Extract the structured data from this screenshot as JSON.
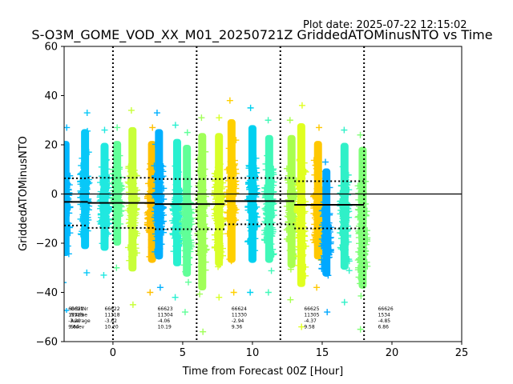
{
  "plot_date_label": "Plot date: 2025-07-22 12:15:02",
  "chart_data": {
    "type": "scatter",
    "title": "S-O3M_GOME_VOD_XX_M01_20250721Z GriddedATOMinusNTO vs Time",
    "xlabel": "Time from Forecast 00Z [Hour]",
    "ylabel": "GriddedATOMinusNTO",
    "xlim": [
      -3.5,
      25
    ],
    "ylim": [
      -60,
      60
    ],
    "xticks": [
      0,
      5,
      10,
      15,
      20,
      25
    ],
    "yticks": [
      -60,
      -40,
      -20,
      0,
      20,
      40,
      60
    ],
    "grid": false,
    "zero_line": 0,
    "vertical_dotted_lines_x": [
      0,
      6,
      12,
      18
    ],
    "clusters": [
      {
        "x": -3.4,
        "color": "#00b8ff",
        "ymin": -36,
        "ymax": 27
      },
      {
        "x": -2.0,
        "color": "#08c8f8",
        "ymin": -32,
        "ymax": 33
      },
      {
        "x": -0.6,
        "color": "#20e8e0",
        "ymin": -33,
        "ymax": 26
      },
      {
        "x": 0.3,
        "color": "#60ff98",
        "ymin": -30,
        "ymax": 27
      },
      {
        "x": 1.4,
        "color": "#c8ff38",
        "ymin": -45,
        "ymax": 34
      },
      {
        "x": 2.8,
        "color": "#ffc000",
        "ymin": -40,
        "ymax": 27
      },
      {
        "x": 3.3,
        "color": "#00b0ff",
        "ymin": -38,
        "ymax": 33
      },
      {
        "x": 4.6,
        "color": "#28f0d0",
        "ymin": -42,
        "ymax": 28
      },
      {
        "x": 5.3,
        "color": "#60ff98",
        "ymin": -48,
        "ymax": 25
      },
      {
        "x": 6.4,
        "color": "#a0ff58",
        "ymin": -56,
        "ymax": 31
      },
      {
        "x": 7.6,
        "color": "#d8ff28",
        "ymin": -42,
        "ymax": 31
      },
      {
        "x": 8.5,
        "color": "#ffd000",
        "ymin": -40,
        "ymax": 38
      },
      {
        "x": 10.0,
        "color": "#00d0f0",
        "ymin": -40,
        "ymax": 35
      },
      {
        "x": 11.2,
        "color": "#40f8b8",
        "ymin": -40,
        "ymax": 30
      },
      {
        "x": 12.8,
        "color": "#a8ff50",
        "ymin": -43,
        "ymax": 30
      },
      {
        "x": 13.5,
        "color": "#e0ff20",
        "ymin": -54,
        "ymax": 36
      },
      {
        "x": 14.7,
        "color": "#ffc800",
        "ymin": -38,
        "ymax": 27
      },
      {
        "x": 15.3,
        "color": "#00a8ff",
        "ymin": -48,
        "ymax": 13
      },
      {
        "x": 16.6,
        "color": "#30f0c8",
        "ymin": -44,
        "ymax": 26
      },
      {
        "x": 17.9,
        "color": "#80ff78",
        "ymin": -55,
        "ymax": 24
      }
    ],
    "mean_line": [
      {
        "x0": -3.5,
        "x1": -1.8,
        "y": -3.2
      },
      {
        "x0": -1.8,
        "x1": 3.0,
        "y": -3.6
      },
      {
        "x0": 3.0,
        "x1": 8.0,
        "y": -4.1
      },
      {
        "x0": 8.0,
        "x1": 13.0,
        "y": -2.9
      },
      {
        "x0": 13.0,
        "x1": 18.0,
        "y": -4.4
      }
    ],
    "upper_stdev_line": [
      {
        "x0": -3.5,
        "x1": -1.8,
        "y": 6.4
      },
      {
        "x0": -1.8,
        "x1": 3.0,
        "y": 6.6
      },
      {
        "x0": 3.0,
        "x1": 8.0,
        "y": 6.1
      },
      {
        "x0": 8.0,
        "x1": 13.0,
        "y": 6.5
      },
      {
        "x0": 13.0,
        "x1": 18.0,
        "y": 5.2
      }
    ],
    "lower_stdev_line": [
      {
        "x0": -3.5,
        "x1": -1.8,
        "y": -12.8
      },
      {
        "x0": -1.8,
        "x1": 3.0,
        "y": -13.8
      },
      {
        "x0": 3.0,
        "x1": 8.0,
        "y": -14.3
      },
      {
        "x0": 8.0,
        "x1": 13.0,
        "y": -12.3
      },
      {
        "x0": 13.0,
        "x1": 18.0,
        "y": -14.0
      }
    ],
    "stats_header": [
      "OrbitNr",
      "NValue",
      "Average",
      "Stdev"
    ],
    "orbit_stats": [
      {
        "x": -3.2,
        "orbit": "66621",
        "nvalue": "11329",
        "average": "-3.20",
        "stdev": "9.64"
      },
      {
        "x": -0.6,
        "orbit": "66622",
        "nvalue": "11318",
        "average": "-3.62",
        "stdev": "10.20"
      },
      {
        "x": 3.2,
        "orbit": "66623",
        "nvalue": "11304",
        "average": "-4.06",
        "stdev": "10.19"
      },
      {
        "x": 8.5,
        "orbit": "66624",
        "nvalue": "11330",
        "average": "-2.94",
        "stdev": "9.36"
      },
      {
        "x": 13.7,
        "orbit": "66625",
        "nvalue": "11305",
        "average": "-4.37",
        "stdev": "9.58"
      },
      {
        "x": 19.0,
        "orbit": "66626",
        "nvalue": "1534",
        "average": "-4.85",
        "stdev": "6.86"
      }
    ]
  }
}
